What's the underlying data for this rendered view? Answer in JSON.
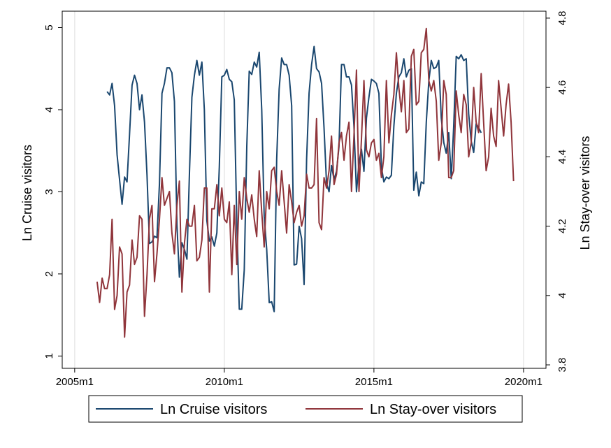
{
  "chart_data": {
    "type": "line",
    "x_unit": "month",
    "x_range": [
      "2004m8",
      "2020m10"
    ],
    "x_ticks": [
      "2005m1",
      "2010m1",
      "2015m1",
      "2020m1"
    ],
    "left_axis": {
      "label": "Ln Cruise visitors",
      "ylim": [
        0.85,
        5.2
      ],
      "ticks": [
        "1",
        "2",
        "3",
        "4",
        "5"
      ]
    },
    "right_axis": {
      "label": "Ln Stay-over visitors",
      "ylim": [
        3.79,
        4.82
      ],
      "ticks": [
        "3.8",
        "4",
        "4.2",
        "4.4",
        "4.6",
        "4.8"
      ]
    },
    "grid": "vertical",
    "legend_position": "bottom",
    "series": [
      {
        "name": "Ln Cruise visitors",
        "axis": "left",
        "color": "#1a476f",
        "x_start": "2006m2",
        "values": [
          4.22,
          4.18,
          4.32,
          4.05,
          3.45,
          3.15,
          2.85,
          3.18,
          3.12,
          3.7,
          4.3,
          4.42,
          4.32,
          4.0,
          4.18,
          3.85,
          3.2,
          2.37,
          2.39,
          2.46,
          2.44,
          3.1,
          4.2,
          4.32,
          4.51,
          4.51,
          4.45,
          4.1,
          2.6,
          1.96,
          2.38,
          2.3,
          2.18,
          3.2,
          4.15,
          4.42,
          4.6,
          4.42,
          4.58,
          4.0,
          2.65,
          2.4,
          2.45,
          2.34,
          2.5,
          3.3,
          4.4,
          4.42,
          4.49,
          4.37,
          4.34,
          4.12,
          2.65,
          1.57,
          1.57,
          2.05,
          3.55,
          4.47,
          4.43,
          4.58,
          4.52,
          4.7,
          4.0,
          2.7,
          2.3,
          1.65,
          1.66,
          1.54,
          3.4,
          4.25,
          4.63,
          4.55,
          4.55,
          4.42,
          4.05,
          2.11,
          2.12,
          2.58,
          2.43,
          1.87,
          3.4,
          4.2,
          4.55,
          4.77,
          4.5,
          4.46,
          4.32,
          3.78,
          3.1,
          3.0,
          3.32,
          3.15,
          3.25,
          3.55,
          4.55,
          4.55,
          4.4,
          4.4,
          4.3,
          3.8,
          3.0,
          3.35,
          3.52,
          3.25,
          3.9,
          4.15,
          4.37,
          4.35,
          4.32,
          4.2,
          3.3,
          3.12,
          3.18,
          3.16,
          3.2,
          3.8,
          4.2,
          4.4,
          4.45,
          4.62,
          4.4,
          4.48,
          4.5,
          3.02,
          3.24,
          2.95,
          3.12,
          3.1,
          3.85,
          4.35,
          4.6,
          4.5,
          4.52,
          4.6,
          3.9,
          3.6,
          3.47,
          3.72,
          3.16,
          3.8,
          4.65,
          4.62,
          4.67,
          4.6,
          4.62,
          3.95,
          3.62,
          3.48,
          3.83,
          3.78,
          3.72
        ]
      },
      {
        "name": "Ln Stay-over visitors",
        "axis": "right",
        "color": "#90353b",
        "x_start": "2005m10",
        "values": [
          4.04,
          3.98,
          4.05,
          4.02,
          4.02,
          4.06,
          4.22,
          3.96,
          4.0,
          4.14,
          4.12,
          3.88,
          4.01,
          4.03,
          4.16,
          4.09,
          4.11,
          4.23,
          4.22,
          3.94,
          4.06,
          4.22,
          4.26,
          4.04,
          4.12,
          4.22,
          4.34,
          4.26,
          4.28,
          4.3,
          4.18,
          4.12,
          4.26,
          4.33,
          4.01,
          4.15,
          4.22,
          4.2,
          4.2,
          4.26,
          4.1,
          4.11,
          4.16,
          4.31,
          4.31,
          4.01,
          4.25,
          4.25,
          4.32,
          4.23,
          4.31,
          4.22,
          4.21,
          4.27,
          4.06,
          4.26,
          4.09,
          4.3,
          4.22,
          4.34,
          4.28,
          4.24,
          4.29,
          4.22,
          4.17,
          4.36,
          4.24,
          4.14,
          4.3,
          4.25,
          4.36,
          4.37,
          4.3,
          4.26,
          4.36,
          4.27,
          4.18,
          4.32,
          4.27,
          4.21,
          4.24,
          4.26,
          4.2,
          4.23,
          4.35,
          4.31,
          4.31,
          4.32,
          4.51,
          4.21,
          4.19,
          4.34,
          4.31,
          4.36,
          4.46,
          4.32,
          4.35,
          4.44,
          4.47,
          4.39,
          4.46,
          4.5,
          4.3,
          4.46,
          4.65,
          4.3,
          4.45,
          4.62,
          4.42,
          4.4,
          4.44,
          4.45,
          4.39,
          4.41,
          4.34,
          4.4,
          4.62,
          4.44,
          4.52,
          4.58,
          4.7,
          4.6,
          4.53,
          4.62,
          4.47,
          4.48,
          4.69,
          4.71,
          4.55,
          4.56,
          4.7,
          4.71,
          4.77,
          4.62,
          4.59,
          4.62,
          4.56,
          4.39,
          4.44,
          4.62,
          4.58,
          4.34,
          4.34,
          4.36,
          4.59,
          4.52,
          4.47,
          4.58,
          4.55,
          4.4,
          4.44,
          4.6,
          4.5,
          4.47,
          4.64,
          4.5,
          4.36,
          4.4,
          4.54,
          4.46,
          4.43,
          4.62,
          4.54,
          4.46,
          4.55,
          4.61,
          4.5,
          4.33
        ]
      }
    ]
  }
}
